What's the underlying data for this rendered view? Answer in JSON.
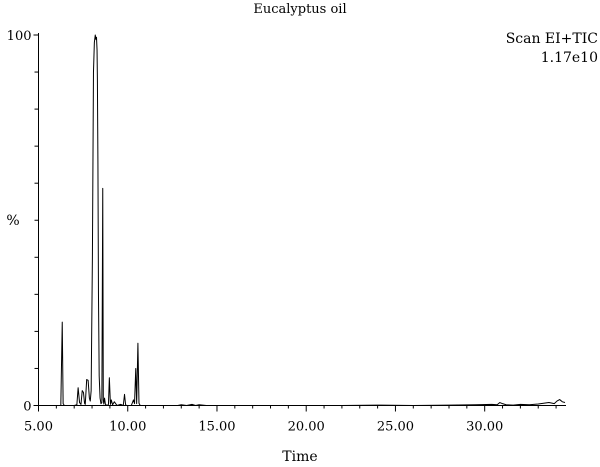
{
  "chart_data": {
    "type": "line",
    "title": "Eucalyptus oil",
    "xlabel": "Time",
    "ylabel": "%",
    "scan_mode": "Scan EI+TIC",
    "scan_intensity": "1.17e10",
    "xlim": [
      5.0,
      34.5
    ],
    "ylim": [
      0,
      100
    ],
    "x_ticks": [
      {
        "value": 5,
        "label": "5.00"
      },
      {
        "value": 10,
        "label": "10.00"
      },
      {
        "value": 15,
        "label": "15.00"
      },
      {
        "value": 20,
        "label": "20.00"
      },
      {
        "value": 25,
        "label": "25.00"
      },
      {
        "value": 30,
        "label": "30.00"
      }
    ],
    "y_ticks": [
      {
        "value": 0,
        "label": "0"
      },
      {
        "value": 100,
        "label": "100"
      }
    ],
    "y_minor_ticks": [
      10,
      20,
      30,
      40,
      50,
      60,
      70,
      80,
      90
    ],
    "series": [
      {
        "x": [
          5.0,
          6.25,
          6.33,
          6.38,
          6.45,
          6.6,
          7.0,
          7.15,
          7.22,
          7.3,
          7.38,
          7.45,
          7.52,
          7.58,
          7.62,
          7.7,
          7.78,
          7.85,
          7.9,
          7.95,
          8.02,
          8.08,
          8.13,
          8.18,
          8.22,
          8.25,
          8.28,
          8.3,
          8.33,
          8.36,
          8.4,
          8.45,
          8.5,
          8.55,
          8.6,
          8.63,
          8.66,
          8.7,
          8.75,
          8.85,
          8.92,
          8.97,
          9.03,
          9.08,
          9.15,
          9.25,
          9.4,
          9.6,
          9.75,
          9.82,
          9.88,
          9.95,
          10.2,
          10.32,
          10.38,
          10.45,
          10.5,
          10.57,
          10.63,
          10.7,
          11.2,
          12.8,
          13.0,
          13.3,
          13.6,
          13.8,
          14.0,
          14.4,
          15.5,
          18.0,
          22.0,
          24.0,
          26.0,
          28.0,
          29.5,
          30.4,
          30.7,
          30.85,
          31.0,
          31.2,
          31.6,
          32.0,
          32.5,
          33.0,
          33.3,
          33.6,
          33.9,
          34.05,
          34.2,
          34.35,
          34.5
        ],
        "y": [
          0.0,
          0.0,
          22.5,
          0.5,
          0.0,
          0.0,
          0.0,
          0.2,
          4.8,
          0.8,
          0.3,
          4.0,
          3.5,
          0.6,
          0.3,
          7.0,
          6.8,
          2.0,
          1.2,
          4.0,
          40.0,
          90.0,
          98.0,
          100.0,
          98.8,
          99.4,
          96.0,
          88.0,
          65.0,
          30.0,
          8.0,
          2.0,
          0.5,
          0.8,
          58.6,
          1.5,
          0.4,
          2.0,
          0.3,
          0.0,
          0.3,
          7.5,
          0.3,
          1.5,
          0.2,
          1.0,
          0.0,
          0.3,
          0.0,
          3.0,
          0.2,
          0.0,
          0.0,
          1.5,
          0.5,
          10.0,
          0.5,
          16.8,
          0.6,
          0.0,
          0.0,
          0.0,
          0.2,
          0.0,
          0.3,
          0.0,
          0.2,
          0.0,
          0.0,
          0.0,
          0.0,
          0.1,
          0.0,
          0.1,
          0.2,
          0.3,
          0.2,
          0.8,
          0.5,
          0.2,
          0.1,
          0.3,
          0.2,
          0.4,
          0.6,
          0.8,
          0.5,
          1.2,
          1.6,
          1.0,
          0.8
        ]
      }
    ]
  }
}
